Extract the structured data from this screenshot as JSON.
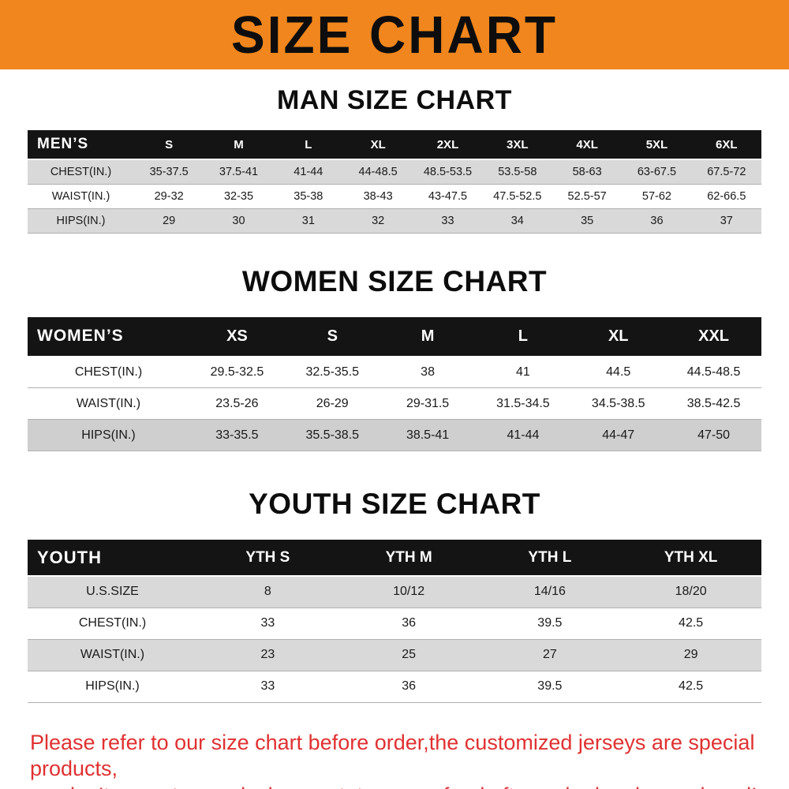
{
  "banner": {
    "title": "SIZE CHART"
  },
  "colors": {
    "banner_bg": "#f0861d",
    "table_header_bg": "#141414",
    "stripe_row": "#d9d9d9",
    "note_text": "#e03131"
  },
  "men": {
    "heading": "MAN SIZE CHART",
    "header": {
      "label": "MEN’S",
      "columns": [
        "S",
        "M",
        "L",
        "XL",
        "2XL",
        "3XL",
        "4XL",
        "5XL",
        "6XL"
      ]
    },
    "rows": [
      {
        "label": "CHEST(IN.)",
        "values": [
          "35-37.5",
          "37.5-41",
          "41-44",
          "44-48.5",
          "48.5-53.5",
          "53.5-58",
          "58-63",
          "63-67.5",
          "67.5-72"
        ]
      },
      {
        "label": "WAIST(IN.)",
        "values": [
          "29-32",
          "32-35",
          "35-38",
          "38-43",
          "43-47.5",
          "47.5-52.5",
          "52.5-57",
          "57-62",
          "62-66.5"
        ]
      },
      {
        "label": "HIPS(IN.)",
        "values": [
          "29",
          "30",
          "31",
          "32",
          "33",
          "34",
          "35",
          "36",
          "37"
        ]
      }
    ]
  },
  "women": {
    "heading": "WOMEN SIZE CHART",
    "header": {
      "label": "WOMEN’S",
      "columns": [
        "XS",
        "S",
        "M",
        "L",
        "XL",
        "XXL"
      ]
    },
    "rows": [
      {
        "label": "CHEST(IN.)",
        "values": [
          "29.5-32.5",
          "32.5-35.5",
          "38",
          "41",
          "44.5",
          "44.5-48.5"
        ]
      },
      {
        "label": "WAIST(IN.)",
        "values": [
          "23.5-26",
          "26-29",
          "29-31.5",
          "31.5-34.5",
          "34.5-38.5",
          "38.5-42.5"
        ]
      },
      {
        "label": "HIPS(IN.)",
        "values": [
          "33-35.5",
          "35.5-38.5",
          "38.5-41",
          "41-44",
          "44-47",
          "47-50"
        ]
      }
    ]
  },
  "youth": {
    "heading": "YOUTH SIZE CHART",
    "header": {
      "label": "YOUTH",
      "columns": [
        "YTH S",
        "YTH M",
        "YTH L",
        "YTH XL"
      ]
    },
    "rows": [
      {
        "label": "U.S.SIZE",
        "values": [
          "8",
          "10/12",
          "14/16",
          "18/20"
        ]
      },
      {
        "label": "CHEST(IN.)",
        "values": [
          "33",
          "36",
          "39.5",
          "42.5"
        ]
      },
      {
        "label": "WAIST(IN.)",
        "values": [
          "23",
          "25",
          "27",
          "29"
        ]
      },
      {
        "label": "HIPS(IN.)",
        "values": [
          "33",
          "36",
          "39.5",
          "42.5"
        ]
      }
    ]
  },
  "note": {
    "line1": "Please refer to our size chart before order,the customized jerseys are special products,",
    "line2": "we don’t accept cancel, change, teturn or refund after order has been placed!"
  }
}
